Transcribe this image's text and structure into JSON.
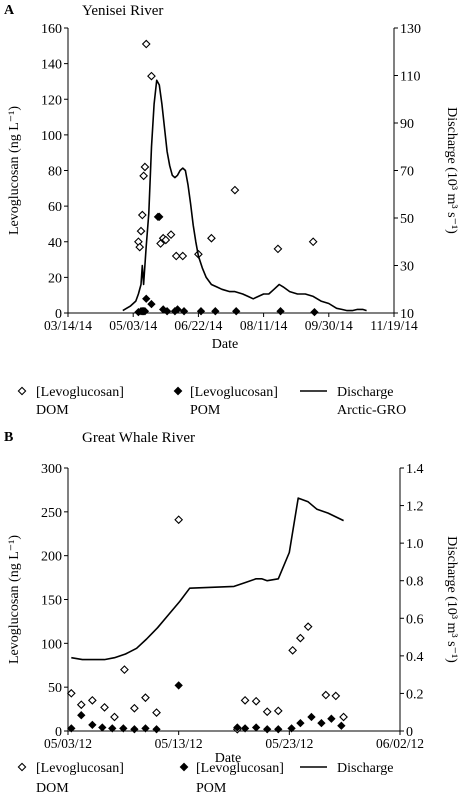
{
  "chart_data": [
    {
      "type": "scatter+line",
      "panel_letter": "A",
      "title": "Yenisei River",
      "xlabel": "Date",
      "ylabel_left": "Levoglucosan (ng L⁻¹)",
      "ylabel_right": "Discharge (10³ m³ s⁻¹)",
      "x_ticks": [
        "03/14/14",
        "05/03/14",
        "06/22/14",
        "08/11/14",
        "09/30/14",
        "11/19/14"
      ],
      "xlim_days": [
        0,
        250
      ],
      "yleft_ticks": [
        0,
        20,
        40,
        60,
        80,
        100,
        120,
        140,
        160
      ],
      "ylim_left": [
        0,
        160
      ],
      "yright_ticks": [
        10,
        30,
        50,
        70,
        90,
        110,
        130
      ],
      "ylim_right": [
        10,
        130
      ],
      "legend": {
        "dom": [
          "[Levoglucosan]",
          "DOM"
        ],
        "pom": [
          "[Levoglucosan]",
          "POM"
        ],
        "line": [
          "Discharge",
          "Arctic-GRO"
        ]
      },
      "series": [
        {
          "name": "[Levoglucosan] DOM",
          "marker": "open-diamond",
          "axis": "left",
          "points": [
            [
              54,
              40
            ],
            [
              55,
              37
            ],
            [
              56,
              46
            ],
            [
              57,
              55
            ],
            [
              58,
              77
            ],
            [
              59,
              82
            ],
            [
              60,
              151
            ],
            [
              64,
              133
            ],
            [
              71,
              39
            ],
            [
              73,
              42
            ],
            [
              75,
              41
            ],
            [
              79,
              44
            ],
            [
              83,
              32
            ],
            [
              88,
              32
            ],
            [
              100,
              33
            ],
            [
              110,
              42
            ],
            [
              128,
              69
            ],
            [
              161,
              36
            ],
            [
              188,
              40
            ]
          ]
        },
        {
          "name": "[Levoglucosan] POM",
          "marker": "filled-diamond",
          "axis": "left",
          "points": [
            [
              54,
              0.5
            ],
            [
              56,
              1
            ],
            [
              57,
              1
            ],
            [
              58,
              1
            ],
            [
              59,
              1
            ],
            [
              60,
              8
            ],
            [
              64,
              5
            ],
            [
              69,
              54
            ],
            [
              70,
              54
            ],
            [
              73,
              2
            ],
            [
              76,
              1
            ],
            [
              82,
              1
            ],
            [
              84,
              2
            ],
            [
              89,
              1
            ],
            [
              102,
              1
            ],
            [
              113,
              1
            ],
            [
              129,
              1
            ],
            [
              163,
              1
            ],
            [
              189,
              0.5
            ]
          ]
        },
        {
          "name": "Discharge Arctic-GRO",
          "marker": "line",
          "axis": "right",
          "points": [
            [
              42,
              11
            ],
            [
              48,
              13
            ],
            [
              52,
              15
            ],
            [
              54,
              18
            ],
            [
              56,
              22
            ],
            [
              57,
              30
            ],
            [
              58,
              22
            ],
            [
              60,
              38
            ],
            [
              62,
              52
            ],
            [
              64,
              80
            ],
            [
              66,
              98
            ],
            [
              68,
              108
            ],
            [
              70,
              106
            ],
            [
              72,
              98
            ],
            [
              74,
              88
            ],
            [
              76,
              78
            ],
            [
              78,
              72
            ],
            [
              80,
              68
            ],
            [
              82,
              67
            ],
            [
              84,
              68
            ],
            [
              86,
              70
            ],
            [
              88,
              71
            ],
            [
              90,
              70
            ],
            [
              92,
              64
            ],
            [
              94,
              56
            ],
            [
              96,
              47
            ],
            [
              98,
              40
            ],
            [
              100,
              34
            ],
            [
              103,
              29
            ],
            [
              106,
              25
            ],
            [
              110,
              22
            ],
            [
              114,
              21
            ],
            [
              118,
              20
            ],
            [
              124,
              19
            ],
            [
              128,
              19
            ],
            [
              134,
              18
            ],
            [
              138,
              17
            ],
            [
              142,
              16
            ],
            [
              146,
              17
            ],
            [
              150,
              18
            ],
            [
              154,
              18
            ],
            [
              158,
              20
            ],
            [
              162,
              22
            ],
            [
              165,
              21
            ],
            [
              170,
              19
            ],
            [
              176,
              18
            ],
            [
              182,
              18
            ],
            [
              188,
              17
            ],
            [
              194,
              15
            ],
            [
              200,
              14
            ],
            [
              206,
              12
            ],
            [
              210,
              11.5
            ],
            [
              214,
              11
            ],
            [
              218,
              11
            ],
            [
              222,
              11.5
            ],
            [
              226,
              11.5
            ],
            [
              229,
              11
            ]
          ]
        }
      ]
    },
    {
      "type": "scatter+line",
      "panel_letter": "B",
      "title": "Great Whale River",
      "xlabel": "Date",
      "ylabel_left": "Levoglucosan (ng L⁻¹)",
      "ylabel_right": "Discharge (10³ m³ s⁻¹)",
      "x_ticks": [
        "05/03/12",
        "05/13/12",
        "05/23/12",
        "06/02/12"
      ],
      "xlim_days": [
        0,
        30
      ],
      "yleft_ticks": [
        0,
        50,
        100,
        150,
        200,
        250,
        300
      ],
      "ylim_left": [
        0,
        300
      ],
      "yright_ticks": [
        "0",
        "0.2",
        "0.4",
        "0.6",
        "0.8",
        "1.0",
        "1.2",
        "1.4"
      ],
      "ylim_right": [
        0,
        1.4
      ],
      "legend": {
        "dom": [
          "[Levoglucosan]",
          "DOM"
        ],
        "pom": [
          "[Levoglucosan]",
          "POM"
        ],
        "line": [
          "Discharge",
          ""
        ]
      },
      "series": [
        {
          "name": "[Levoglucosan] DOM",
          "marker": "open-diamond",
          "axis": "left",
          "points": [
            [
              0.3,
              43
            ],
            [
              1.2,
              30
            ],
            [
              2.2,
              35
            ],
            [
              3.3,
              27
            ],
            [
              4.2,
              16
            ],
            [
              5.1,
              70
            ],
            [
              6,
              26
            ],
            [
              7,
              38
            ],
            [
              8,
              21
            ],
            [
              10,
              241
            ],
            [
              15.3,
              2
            ],
            [
              16,
              35
            ],
            [
              17,
              34
            ],
            [
              18,
              22
            ],
            [
              19,
              23
            ],
            [
              20.3,
              92
            ],
            [
              21,
              106
            ],
            [
              21.7,
              119
            ],
            [
              23.3,
              41
            ],
            [
              24.2,
              40
            ],
            [
              24.9,
              16
            ]
          ]
        },
        {
          "name": "[Levoglucosan] POM",
          "marker": "filled-diamond",
          "axis": "left",
          "points": [
            [
              0.3,
              3
            ],
            [
              1.2,
              18
            ],
            [
              2.2,
              7
            ],
            [
              3.1,
              4
            ],
            [
              4,
              3
            ],
            [
              5,
              3
            ],
            [
              6,
              2
            ],
            [
              7,
              3
            ],
            [
              8,
              2
            ],
            [
              10,
              52
            ],
            [
              15.3,
              4
            ],
            [
              16,
              3
            ],
            [
              17,
              4
            ],
            [
              18,
              2
            ],
            [
              19,
              2
            ],
            [
              20.2,
              3
            ],
            [
              21,
              9
            ],
            [
              22,
              16
            ],
            [
              22.9,
              9
            ],
            [
              23.8,
              14
            ],
            [
              24.7,
              6
            ]
          ]
        },
        {
          "name": "Discharge",
          "marker": "line",
          "axis": "right",
          "points": [
            [
              0.3,
              0.39
            ],
            [
              1.3,
              0.38
            ],
            [
              2.3,
              0.38
            ],
            [
              3.3,
              0.38
            ],
            [
              4.2,
              0.39
            ],
            [
              5.2,
              0.41
            ],
            [
              6.2,
              0.44
            ],
            [
              7.1,
              0.49
            ],
            [
              8.1,
              0.55
            ],
            [
              9.1,
              0.62
            ],
            [
              10.1,
              0.69
            ],
            [
              11,
              0.76
            ],
            [
              15,
              0.77
            ],
            [
              16,
              0.79
            ],
            [
              17,
              0.81
            ],
            [
              17.5,
              0.81
            ],
            [
              18,
              0.8
            ],
            [
              19,
              0.81
            ],
            [
              20,
              0.95
            ],
            [
              20.8,
              1.24
            ],
            [
              21.7,
              1.22
            ],
            [
              22.5,
              1.18
            ],
            [
              23.5,
              1.16
            ],
            [
              24.9,
              1.12
            ]
          ]
        }
      ]
    }
  ]
}
